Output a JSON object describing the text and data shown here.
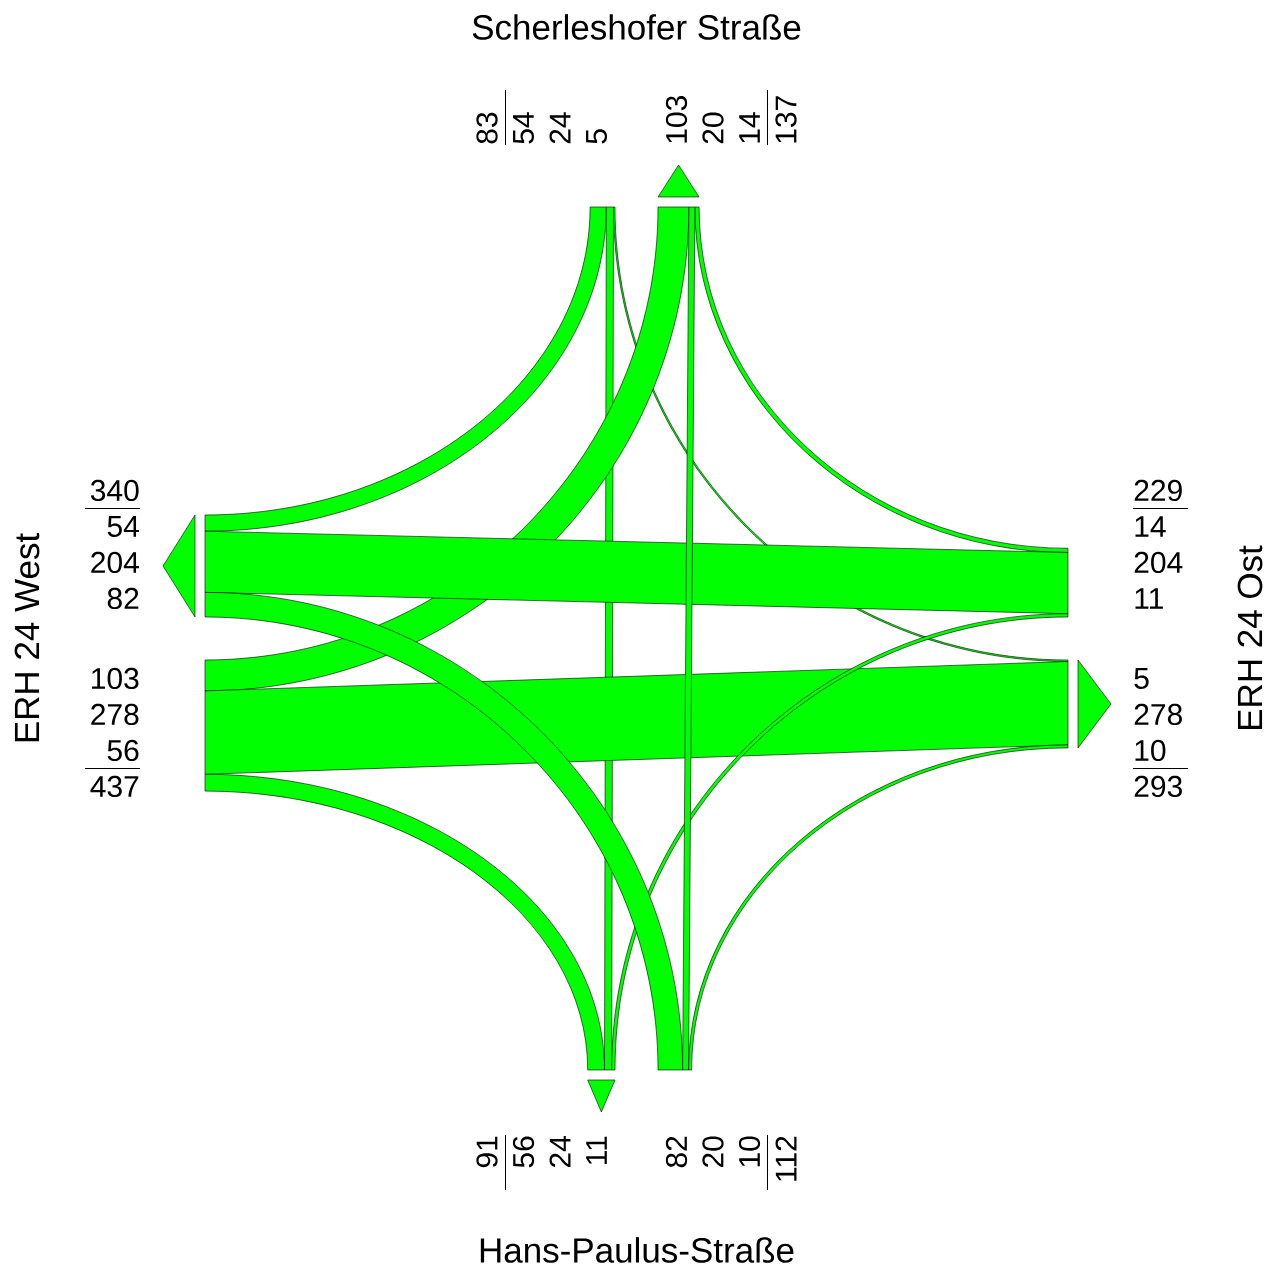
{
  "chart_data": {
    "type": "other",
    "categories": [
      "Scherleshofer Straße",
      "ERH 24 West",
      "ERH 24 Ost",
      "Hans-Paulus-Straße"
    ],
    "series": [
      {
        "color": "#00ff00",
        "values": [
          null,
          54,
          5,
          24
        ]
      },
      {
        "color": "#00ff00",
        "values": [
          103,
          null,
          278,
          56
        ]
      },
      {
        "color": "#00ff00",
        "values": [
          14,
          204,
          null,
          11
        ]
      },
      {
        "color": "#00ff00",
        "values": [
          20,
          82,
          10,
          null
        ]
      }
    ],
    "annotations": [
      "54",
      "5",
      "24",
      "103",
      "278",
      "56",
      "14",
      "204",
      "11",
      "20",
      "82",
      "10"
    ],
    "totals": [
      "83",
      "137",
      "437",
      "340",
      "229",
      "293",
      "112",
      "91"
    ],
    "data_labels": true
  }
}
